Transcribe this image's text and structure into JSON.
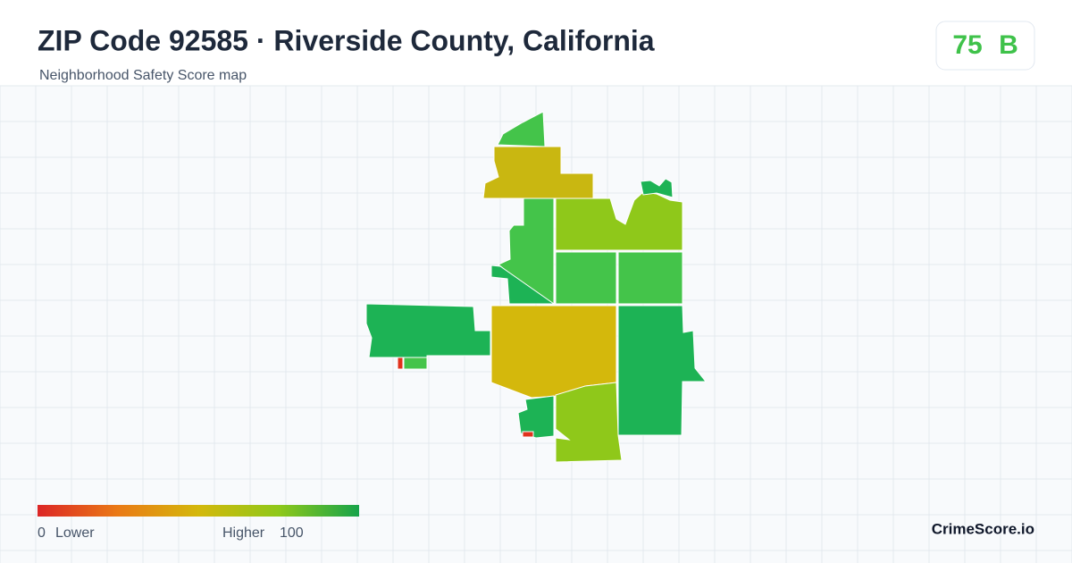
{
  "header": {
    "title": "ZIP Code 92585 · Riverside County, California",
    "subtitle": "Neighborhood Safety Score map"
  },
  "score": {
    "value": "75",
    "grade": "B"
  },
  "legend": {
    "min": "0",
    "min_label": "Lower",
    "max_label": "Higher",
    "max": "100"
  },
  "brand": "CrimeScore.io"
}
